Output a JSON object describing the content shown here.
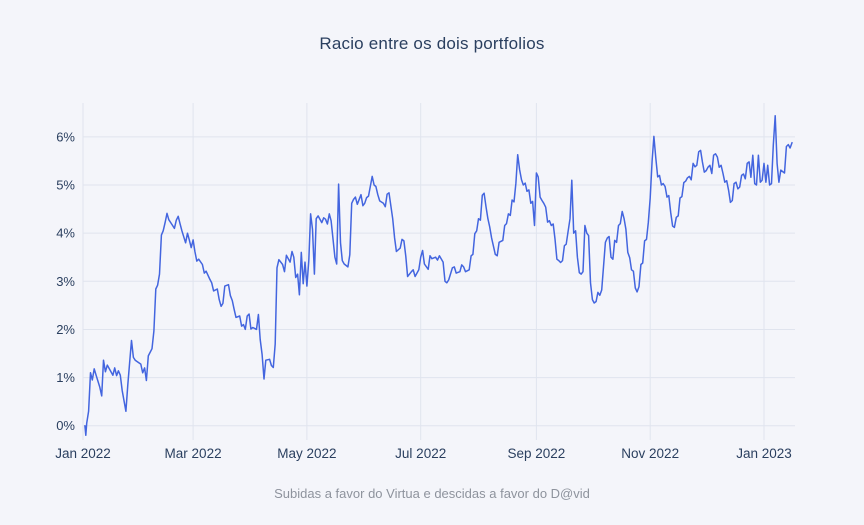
{
  "page": {
    "background": "#f4f5fa"
  },
  "chart_data": {
    "type": "line",
    "title": "Racio entre os dois portfolios",
    "caption": "Subidas a favor do Virtua e descidas a favor do D@vid",
    "legend": "none",
    "grid": "on",
    "colors": {
      "line": "#4365df",
      "grid": "#e0e4ee",
      "axis_text": "#2a3f5f",
      "title_text": "#2a3f5f",
      "caption_text": "#8e939d",
      "background": "#f4f5fa"
    },
    "ylabel": "",
    "xlabel": "",
    "y_ticks": [
      {
        "value": 0,
        "label": "0%"
      },
      {
        "value": 1,
        "label": "1%"
      },
      {
        "value": 2,
        "label": "2%"
      },
      {
        "value": 3,
        "label": "3%"
      },
      {
        "value": 4,
        "label": "4%"
      },
      {
        "value": 5,
        "label": "5%"
      },
      {
        "value": 6,
        "label": "6%"
      }
    ],
    "x_ticks": [
      {
        "day": 0,
        "label": "Jan 2022"
      },
      {
        "day": 59,
        "label": "Mar 2022"
      },
      {
        "day": 120,
        "label": "May 2022"
      },
      {
        "day": 181,
        "label": "Jul 2022"
      },
      {
        "day": 243,
        "label": "Sep 2022"
      },
      {
        "day": 304,
        "label": "Nov 2022"
      },
      {
        "day": 365,
        "label": "Jan 2023"
      }
    ],
    "x_encoding": "days since 2022-01-01",
    "x_range": [
      0,
      381.5
    ],
    "y_range": [
      -0.3,
      6.7
    ],
    "points": [
      [
        1,
        0.0
      ],
      [
        1.5,
        -0.2
      ],
      [
        2,
        0.05
      ],
      [
        3,
        0.3
      ],
      [
        4,
        1.1
      ],
      [
        5,
        0.95
      ],
      [
        6,
        1.18
      ],
      [
        7,
        1.05
      ],
      [
        9,
        0.8
      ],
      [
        10,
        0.62
      ],
      [
        11,
        1.36
      ],
      [
        12,
        1.12
      ],
      [
        13,
        1.26
      ],
      [
        16,
        1.05
      ],
      [
        17,
        1.2
      ],
      [
        18,
        1.04
      ],
      [
        19,
        1.14
      ],
      [
        20,
        1.05
      ],
      [
        21,
        0.73
      ],
      [
        23,
        0.3
      ],
      [
        24,
        0.85
      ],
      [
        25,
        1.3
      ],
      [
        26,
        1.77
      ],
      [
        27,
        1.42
      ],
      [
        28,
        1.36
      ],
      [
        31,
        1.28
      ],
      [
        32,
        1.1
      ],
      [
        33,
        1.2
      ],
      [
        34,
        0.94
      ],
      [
        35,
        1.45
      ],
      [
        37,
        1.6
      ],
      [
        38,
        1.97
      ],
      [
        39,
        2.84
      ],
      [
        40,
        2.92
      ],
      [
        41,
        3.15
      ],
      [
        42,
        3.96
      ],
      [
        43,
        4.05
      ],
      [
        44,
        4.22
      ],
      [
        45,
        4.41
      ],
      [
        46,
        4.28
      ],
      [
        48,
        4.16
      ],
      [
        49,
        4.1
      ],
      [
        50,
        4.27
      ],
      [
        51,
        4.35
      ],
      [
        52,
        4.2
      ],
      [
        53,
        4.05
      ],
      [
        55,
        3.8
      ],
      [
        56,
        4.0
      ],
      [
        57,
        3.86
      ],
      [
        58,
        3.7
      ],
      [
        59,
        3.86
      ],
      [
        60,
        3.62
      ],
      [
        61,
        3.42
      ],
      [
        62,
        3.46
      ],
      [
        64,
        3.35
      ],
      [
        65,
        3.17
      ],
      [
        66,
        3.21
      ],
      [
        68,
        3.04
      ],
      [
        69,
        2.97
      ],
      [
        70,
        2.8
      ],
      [
        72,
        2.84
      ],
      [
        73,
        2.62
      ],
      [
        74,
        2.48
      ],
      [
        75,
        2.54
      ],
      [
        76,
        2.9
      ],
      [
        78,
        2.93
      ],
      [
        79,
        2.7
      ],
      [
        80,
        2.6
      ],
      [
        81,
        2.42
      ],
      [
        82,
        2.25
      ],
      [
        84,
        2.28
      ],
      [
        85,
        2.07
      ],
      [
        86,
        2.1
      ],
      [
        87,
        2.0
      ],
      [
        88,
        2.28
      ],
      [
        89,
        2.32
      ],
      [
        90,
        2.01
      ],
      [
        91,
        2.04
      ],
      [
        93,
        2.0
      ],
      [
        94,
        2.31
      ],
      [
        95,
        1.79
      ],
      [
        96,
        1.48
      ],
      [
        97,
        0.97
      ],
      [
        98,
        1.36
      ],
      [
        100,
        1.38
      ],
      [
        101,
        1.25
      ],
      [
        102,
        1.21
      ],
      [
        103,
        1.7
      ],
      [
        104,
        3.28
      ],
      [
        105,
        3.45
      ],
      [
        107,
        3.35
      ],
      [
        108,
        3.2
      ],
      [
        109,
        3.54
      ],
      [
        111,
        3.4
      ],
      [
        112,
        3.62
      ],
      [
        113,
        3.5
      ],
      [
        114,
        3.08
      ],
      [
        115,
        3.15
      ],
      [
        116,
        2.72
      ],
      [
        117,
        3.6
      ],
      [
        118,
        2.95
      ],
      [
        119,
        3.4
      ],
      [
        120,
        2.9
      ],
      [
        121,
        3.43
      ],
      [
        122,
        4.4
      ],
      [
        123,
        4.08
      ],
      [
        124,
        3.15
      ],
      [
        125,
        4.3
      ],
      [
        126,
        4.36
      ],
      [
        128,
        4.22
      ],
      [
        129,
        4.32
      ],
      [
        130,
        4.29
      ],
      [
        131,
        4.19
      ],
      [
        132,
        4.4
      ],
      [
        133,
        4.26
      ],
      [
        135,
        3.5
      ],
      [
        136,
        3.36
      ],
      [
        137,
        5.02
      ],
      [
        138,
        3.8
      ],
      [
        139,
        3.43
      ],
      [
        140,
        3.36
      ],
      [
        142,
        3.3
      ],
      [
        143,
        3.55
      ],
      [
        144,
        4.62
      ],
      [
        145,
        4.7
      ],
      [
        146,
        4.75
      ],
      [
        147,
        4.6
      ],
      [
        149,
        4.8
      ],
      [
        150,
        4.57
      ],
      [
        151,
        4.62
      ],
      [
        152,
        4.74
      ],
      [
        153,
        4.77
      ],
      [
        155,
        5.18
      ],
      [
        156,
        5.0
      ],
      [
        157,
        4.97
      ],
      [
        158,
        4.8
      ],
      [
        159,
        4.67
      ],
      [
        161,
        4.62
      ],
      [
        162,
        4.55
      ],
      [
        163,
        4.81
      ],
      [
        164,
        4.84
      ],
      [
        166,
        4.3
      ],
      [
        167,
        3.9
      ],
      [
        168,
        3.62
      ],
      [
        170,
        3.69
      ],
      [
        171,
        3.87
      ],
      [
        172,
        3.84
      ],
      [
        173,
        3.52
      ],
      [
        174,
        3.1
      ],
      [
        176,
        3.2
      ],
      [
        177,
        3.24
      ],
      [
        178,
        3.1
      ],
      [
        180,
        3.24
      ],
      [
        181,
        3.5
      ],
      [
        182,
        3.64
      ],
      [
        183,
        3.36
      ],
      [
        185,
        3.25
      ],
      [
        186,
        3.53
      ],
      [
        187,
        3.47
      ],
      [
        189,
        3.5
      ],
      [
        190,
        3.44
      ],
      [
        191,
        3.53
      ],
      [
        193,
        3.4
      ],
      [
        194,
        3.0
      ],
      [
        195,
        2.97
      ],
      [
        196,
        3.03
      ],
      [
        198,
        3.28
      ],
      [
        199,
        3.3
      ],
      [
        200,
        3.17
      ],
      [
        202,
        3.2
      ],
      [
        203,
        3.34
      ],
      [
        204,
        3.3
      ],
      [
        205,
        3.2
      ],
      [
        207,
        3.24
      ],
      [
        208,
        3.53
      ],
      [
        209,
        3.56
      ],
      [
        210,
        3.99
      ],
      [
        211,
        4.05
      ],
      [
        212,
        4.3
      ],
      [
        213,
        4.27
      ],
      [
        214,
        4.79
      ],
      [
        215,
        4.83
      ],
      [
        216,
        4.55
      ],
      [
        217,
        4.3
      ],
      [
        218,
        4.13
      ],
      [
        219,
        3.9
      ],
      [
        221,
        3.56
      ],
      [
        222,
        3.53
      ],
      [
        223,
        3.81
      ],
      [
        225,
        3.85
      ],
      [
        226,
        4.16
      ],
      [
        227,
        4.2
      ],
      [
        228,
        4.4
      ],
      [
        229,
        4.37
      ],
      [
        230,
        4.69
      ],
      [
        231,
        4.65
      ],
      [
        232,
        5.04
      ],
      [
        233,
        5.63
      ],
      [
        234,
        5.32
      ],
      [
        235,
        5.11
      ],
      [
        236,
        5.0
      ],
      [
        237,
        5.04
      ],
      [
        238,
        4.87
      ],
      [
        239,
        4.9
      ],
      [
        240,
        4.62
      ],
      [
        241,
        4.66
      ],
      [
        242,
        4.16
      ],
      [
        243,
        5.25
      ],
      [
        244,
        5.17
      ],
      [
        245,
        4.75
      ],
      [
        246,
        4.68
      ],
      [
        247,
        4.62
      ],
      [
        248,
        4.54
      ],
      [
        249,
        4.23
      ],
      [
        250,
        4.26
      ],
      [
        251,
        4.16
      ],
      [
        252,
        4.19
      ],
      [
        253,
        3.88
      ],
      [
        254,
        3.46
      ],
      [
        255,
        3.43
      ],
      [
        256,
        3.39
      ],
      [
        257,
        3.43
      ],
      [
        258,
        3.74
      ],
      [
        259,
        3.77
      ],
      [
        261,
        4.3
      ],
      [
        262,
        5.1
      ],
      [
        263,
        4.0
      ],
      [
        264,
        4.05
      ],
      [
        265,
        3.5
      ],
      [
        266,
        3.18
      ],
      [
        267,
        3.15
      ],
      [
        268,
        3.2
      ],
      [
        269,
        4.16
      ],
      [
        270,
        4.0
      ],
      [
        271,
        3.95
      ],
      [
        272,
        2.97
      ],
      [
        273,
        2.62
      ],
      [
        274,
        2.55
      ],
      [
        275,
        2.58
      ],
      [
        276,
        2.77
      ],
      [
        277,
        2.71
      ],
      [
        278,
        2.82
      ],
      [
        280,
        3.81
      ],
      [
        281,
        3.9
      ],
      [
        282,
        3.93
      ],
      [
        283,
        3.5
      ],
      [
        284,
        3.46
      ],
      [
        285,
        3.85
      ],
      [
        286,
        3.81
      ],
      [
        287,
        4.16
      ],
      [
        288,
        4.2
      ],
      [
        289,
        4.45
      ],
      [
        290,
        4.3
      ],
      [
        291,
        4.08
      ],
      [
        292,
        3.6
      ],
      [
        293,
        3.49
      ],
      [
        294,
        3.24
      ],
      [
        295,
        3.21
      ],
      [
        296,
        2.86
      ],
      [
        297,
        2.78
      ],
      [
        298,
        2.89
      ],
      [
        299,
        3.35
      ],
      [
        300,
        3.38
      ],
      [
        301,
        3.84
      ],
      [
        302,
        3.87
      ],
      [
        303,
        4.22
      ],
      [
        304,
        4.73
      ],
      [
        305,
        5.5
      ],
      [
        306,
        6.01
      ],
      [
        307,
        5.56
      ],
      [
        308,
        5.17
      ],
      [
        309,
        5.2
      ],
      [
        310,
        5.0
      ],
      [
        311,
        5.03
      ],
      [
        312,
        4.97
      ],
      [
        313,
        4.75
      ],
      [
        314,
        4.78
      ],
      [
        315,
        4.43
      ],
      [
        316,
        4.15
      ],
      [
        317,
        4.12
      ],
      [
        318,
        4.33
      ],
      [
        319,
        4.36
      ],
      [
        320,
        4.73
      ],
      [
        321,
        4.76
      ],
      [
        322,
        5.05
      ],
      [
        323,
        5.08
      ],
      [
        324,
        5.15
      ],
      [
        325,
        5.18
      ],
      [
        326,
        5.11
      ],
      [
        327,
        5.45
      ],
      [
        328,
        5.38
      ],
      [
        329,
        5.41
      ],
      [
        330,
        5.69
      ],
      [
        331,
        5.72
      ],
      [
        332,
        5.48
      ],
      [
        333,
        5.27
      ],
      [
        334,
        5.3
      ],
      [
        335,
        5.37
      ],
      [
        336,
        5.41
      ],
      [
        337,
        5.24
      ],
      [
        338,
        5.62
      ],
      [
        339,
        5.65
      ],
      [
        340,
        5.58
      ],
      [
        341,
        5.37
      ],
      [
        342,
        5.41
      ],
      [
        343,
        5.24
      ],
      [
        344,
        5.06
      ],
      [
        345,
        5.09
      ],
      [
        346,
        4.89
      ],
      [
        347,
        4.64
      ],
      [
        348,
        4.68
      ],
      [
        349,
        5.03
      ],
      [
        350,
        5.06
      ],
      [
        351,
        4.92
      ],
      [
        352,
        4.96
      ],
      [
        353,
        5.2
      ],
      [
        354,
        5.23
      ],
      [
        355,
        5.13
      ],
      [
        356,
        5.45
      ],
      [
        357,
        5.48
      ],
      [
        358,
        5.16
      ],
      [
        359,
        5.62
      ],
      [
        360,
        5.03
      ],
      [
        361,
        5.0
      ],
      [
        362,
        5.62
      ],
      [
        363,
        5.06
      ],
      [
        364,
        5.1
      ],
      [
        365,
        5.45
      ],
      [
        366,
        5.06
      ],
      [
        367,
        5.41
      ],
      [
        368,
        5.0
      ],
      [
        369,
        5.03
      ],
      [
        370,
        5.83
      ],
      [
        371,
        6.44
      ],
      [
        372,
        5.45
      ],
      [
        373,
        5.06
      ],
      [
        374,
        5.31
      ],
      [
        375,
        5.28
      ],
      [
        376,
        5.25
      ],
      [
        377,
        5.8
      ],
      [
        378,
        5.84
      ],
      [
        379,
        5.77
      ],
      [
        380,
        5.88
      ]
    ]
  }
}
